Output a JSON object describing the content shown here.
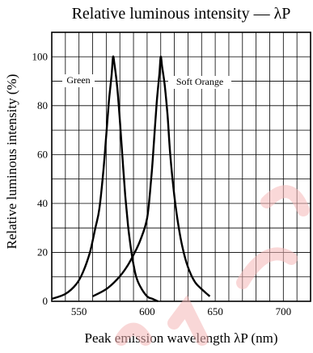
{
  "chart_data": {
    "type": "line",
    "title": "Relative luminous intensity — λP",
    "xlabel": "Peak emission wavelength λP (nm)",
    "ylabel": "Relative luminous intensity (%)",
    "xlim": [
      530,
      720
    ],
    "ylim": [
      0,
      110
    ],
    "xticks": [
      550,
      600,
      650,
      700
    ],
    "yticks": [
      0,
      20,
      40,
      60,
      80,
      100
    ],
    "grid": true,
    "series": [
      {
        "name": "Green",
        "color": "#000000",
        "x": [
          530,
          540,
          548,
          553,
          558,
          562,
          565,
          568,
          570,
          572,
          574,
          575,
          576,
          578,
          580,
          582,
          584,
          586,
          588,
          590,
          592,
          595,
          600,
          604,
          608
        ],
        "y": [
          1,
          3,
          7,
          12,
          20,
          30,
          38,
          54,
          68,
          82,
          93,
          100,
          97,
          88,
          74,
          58,
          43,
          31,
          22,
          15,
          10,
          6,
          2,
          1,
          0
        ]
      },
      {
        "name": "Soft Orange",
        "color": "#000000",
        "x": [
          560,
          570,
          578,
          585,
          590,
          595,
          600,
          603,
          605,
          607,
          609,
          610,
          611,
          613,
          615,
          617,
          620,
          623,
          626,
          630,
          635,
          640,
          646
        ],
        "y": [
          2,
          5,
          9,
          14,
          19,
          25,
          34,
          50,
          65,
          81,
          93,
          100,
          96,
          88,
          76,
          60,
          43,
          31,
          22,
          14,
          8,
          5,
          2
        ]
      }
    ],
    "labels": {
      "green": "Green",
      "orange": "Soft Orange"
    }
  },
  "watermark": {
    "color": "#f5b8b8",
    "icon": "watermark-logo-icon"
  }
}
